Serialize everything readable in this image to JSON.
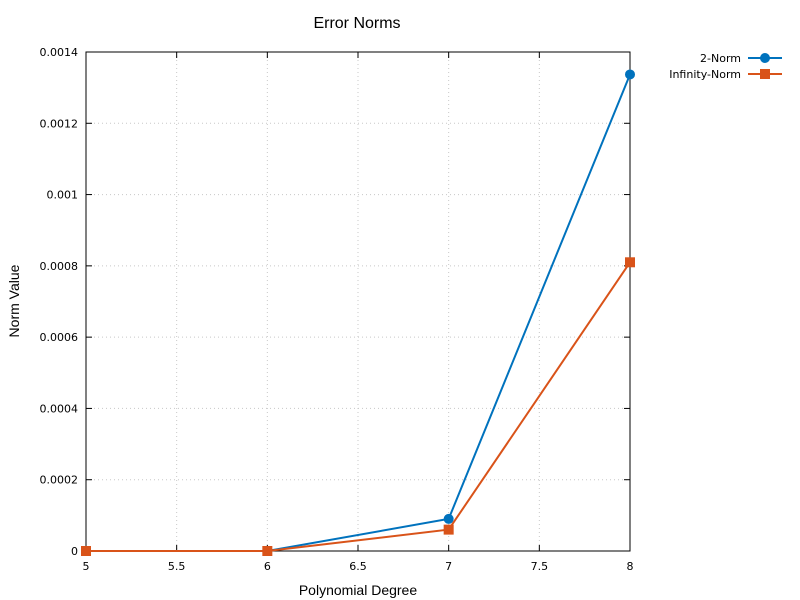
{
  "chart_data": {
    "type": "line",
    "title": "Error Norms",
    "xlabel": "Polynomial Degree",
    "ylabel": "Norm Value",
    "xlim": [
      5,
      8
    ],
    "ylim": [
      0,
      0.0014
    ],
    "x_ticks": [
      "5",
      "5.5",
      "6",
      "6.5",
      "7",
      "7.5",
      "8"
    ],
    "y_ticks": [
      "0",
      "0.0002",
      "0.0004",
      "0.0006",
      "0.0008",
      "0.001",
      "0.0012",
      "0.0014"
    ],
    "grid": true,
    "legend_position": "top-right (outside plot)",
    "series": [
      {
        "name": "2-Norm",
        "color": "#0072bd",
        "marker": "circle",
        "x": [
          5,
          6,
          7,
          8
        ],
        "y": [
          0.0,
          0.0,
          9e-05,
          0.001337
        ]
      },
      {
        "name": "Infinity-Norm",
        "color": "#d95319",
        "marker": "square",
        "x": [
          5,
          6,
          7,
          8
        ],
        "y": [
          0.0,
          0.0,
          6e-05,
          0.00081
        ]
      }
    ]
  }
}
